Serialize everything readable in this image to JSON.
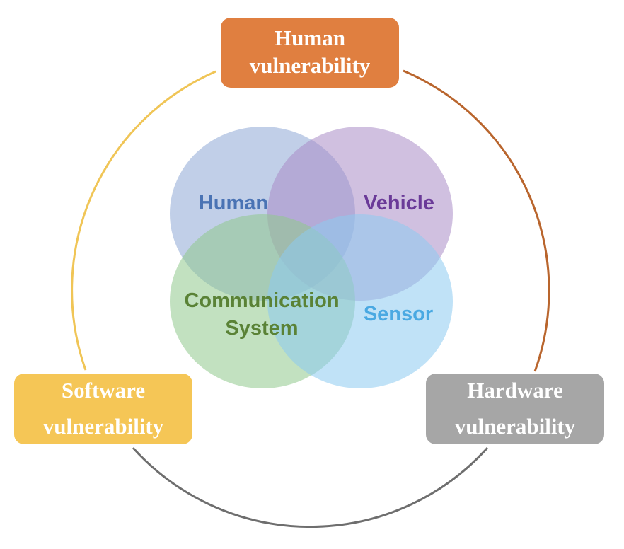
{
  "boxes": {
    "human": {
      "line1": "Human",
      "line2": "vulnerability",
      "color": "#E07F40"
    },
    "software": {
      "line1": "Software",
      "line2": "vulnerability",
      "color": "#F5C656"
    },
    "hardware": {
      "line1": "Hardware",
      "line2": "vulnerability",
      "color": "#A6A6A6"
    }
  },
  "arcs": {
    "human_to_hardware": "#B9652D",
    "software_to_human": "#F0C556",
    "hardware_to_software": "#6E6E6E"
  },
  "venn": {
    "human": {
      "label": "Human",
      "fill": "#8EA7D6",
      "text_color": "#4A73B4"
    },
    "vehicle": {
      "label": "Vehicle",
      "fill": "#A98DC6",
      "text_color": "#6A3A98"
    },
    "communication": {
      "line1": "Communication",
      "line2": "System",
      "fill": "#8FC98D",
      "text_color": "#5A8236"
    },
    "sensor": {
      "label": "Sensor",
      "fill": "#8CCBF1",
      "text_color": "#4AA9E2"
    }
  }
}
